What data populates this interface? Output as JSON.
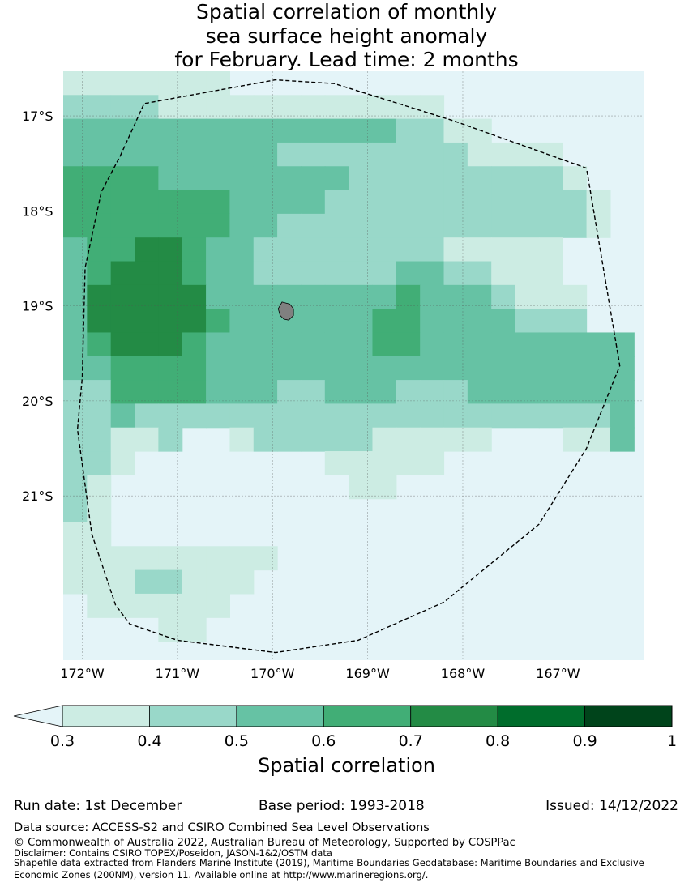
{
  "title": {
    "line1": "Spatial correlation of monthly",
    "line2": "sea surface height anomaly",
    "line3": "for February. Lead time: 2 months"
  },
  "map": {
    "lat_ticks": [
      "17°S",
      "18°S",
      "19°S",
      "20°S",
      "21°S"
    ],
    "lon_ticks": [
      "172°W",
      "171°W",
      "170°W",
      "169°W",
      "168°W",
      "167°W"
    ],
    "lon_range": [
      -172.2,
      -166.1
    ],
    "lat_range": [
      -16.53,
      -22.73
    ],
    "grid_step_deg": 0.25,
    "correlation_grid": [
      "1111111000000000000000000",
      "2222111111111111000000000",
      "3333333333333322110000000",
      "3333333332222222211110000",
      "4444333333332222222221000",
      "4444444333322222222222100",
      "4444444332222222222222100",
      "3445543322222222111110000",
      "3455543322222233221110000",
      "3555553333333343332111000",
      "3555554333333443333222000",
      "3455543333333443333333330",
      "3344443333333333333333330",
      "2244443332233322233333330",
      "2232222222222222222222230",
      "2211200122222111110001130",
      "2210000000011111000000000",
      "2100000000001100000000000",
      "2100000000000000000000000",
      "1100000000000000000000000",
      "1111111110000000000000000",
      "1112211100000000000000000",
      "0111111000000000000000000",
      "0000110000000000000000000"
    ],
    "level_colors": [
      "#e4f4f8",
      "#ccece3",
      "#99d8c9",
      "#66c2a4",
      "#41ae76",
      "#238b45",
      "#006d2c",
      "#00441b"
    ],
    "boundary_coords": [
      [
        -171.6,
        -17.42
      ],
      [
        -171.35,
        -16.87
      ],
      [
        -169.97,
        -16.62
      ],
      [
        -169.35,
        -16.66
      ],
      [
        -168.1,
        -17.05
      ],
      [
        -166.7,
        -17.55
      ],
      [
        -166.35,
        -19.63
      ],
      [
        -166.7,
        -20.5
      ],
      [
        -167.2,
        -21.3
      ],
      [
        -168.2,
        -22.12
      ],
      [
        -169.1,
        -22.52
      ],
      [
        -169.97,
        -22.65
      ],
      [
        -171.0,
        -22.52
      ],
      [
        -171.5,
        -22.35
      ],
      [
        -171.65,
        -22.15
      ],
      [
        -171.9,
        -21.4
      ],
      [
        -172.05,
        -20.3
      ],
      [
        -172.0,
        -19.75
      ],
      [
        -171.97,
        -18.6
      ],
      [
        -171.8,
        -17.8
      ],
      [
        -171.6,
        -17.42
      ]
    ],
    "island_colors": {
      "fill": "#808080",
      "stroke": "#000000"
    }
  },
  "colorbar": {
    "ticks": [
      "0.3",
      "0.4",
      "0.5",
      "0.6",
      "0.7",
      "0.8",
      "0.9",
      "1"
    ],
    "colors": [
      "#ccece3",
      "#99d8c9",
      "#66c2a4",
      "#41ae76",
      "#238b45",
      "#006d2c",
      "#00441b"
    ],
    "extend_color": "#e4f4f8",
    "label": "Spatial correlation"
  },
  "footer": {
    "run_date": "Run date: 1st December",
    "base_period": "Base period: 1993-2018",
    "issued": "Issued: 14/12/2022",
    "data_source": "Data source: ACCESS-S2 and CSIRO Combined Sea Level Observations",
    "copyright": "© Commonwealth of Australia 2022, Australian Bureau of Meteorology, Supported by COSPPac",
    "disclaimer": "Disclaimer: Contains CSIRO TOPEX/Poseidon, JASON-1&2/OSTM data",
    "shapefile_line1": "Shapefile data extracted from Flanders Marine Institute (2019), Maritime Boundaries Geodatabase: Maritime Boundaries and Exclusive",
    "shapefile_line2": "Economic Zones (200NM), version 11. Available online at http://www.marineregions.org/."
  }
}
